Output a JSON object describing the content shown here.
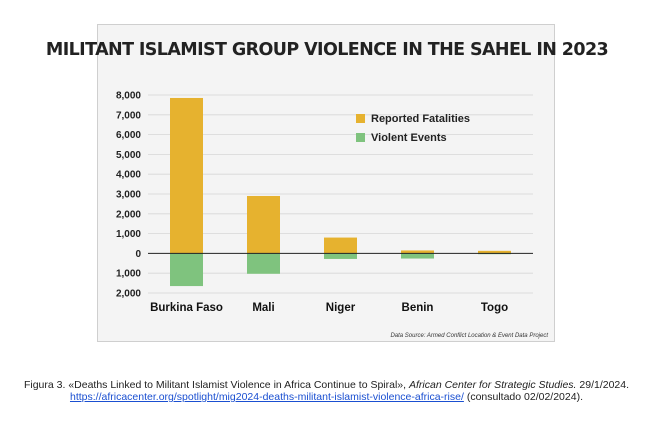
{
  "chart_data": {
    "type": "bar",
    "title": "MILITANT ISLAMIST GROUP VIOLENCE IN THE SAHEL IN 2023",
    "categories": [
      "Burkina Faso",
      "Mali",
      "Niger",
      "Benin",
      "Togo"
    ],
    "series": [
      {
        "name": "Reported Fatalities",
        "color": "#e6b22f",
        "values": [
          7850,
          2900,
          800,
          150,
          130
        ]
      },
      {
        "name": "Violent Events",
        "color": "#7fc37e",
        "values": [
          1650,
          1030,
          280,
          260,
          40
        ],
        "direction": "below-zero"
      }
    ],
    "ylim": [
      -2000,
      8000
    ],
    "yticks": [
      {
        "value": 8000,
        "label": "8,000"
      },
      {
        "value": 7000,
        "label": "7,000"
      },
      {
        "value": 6000,
        "label": "6,000"
      },
      {
        "value": 5000,
        "label": "5,000"
      },
      {
        "value": 4000,
        "label": "4,000"
      },
      {
        "value": 3000,
        "label": "3,000"
      },
      {
        "value": 2000,
        "label": "2,000"
      },
      {
        "value": 1000,
        "label": "1,000"
      },
      {
        "value": 0,
        "label": "0"
      },
      {
        "value": -1000,
        "label": "1,000"
      },
      {
        "value": -2000,
        "label": "2,000"
      }
    ],
    "grid": true,
    "legend_position": "top-right",
    "source": "Data Source: Armed Conflict Location & Event Data Project"
  },
  "caption": {
    "prefix": "Figura 3. «Deaths Linked to Militant Islamist Violence in Africa Continue to Spiral», ",
    "publisher": "African Center for Strategic Studies.",
    "date": " 29/1/2024. ",
    "url": "https://africacenter.org/spotlight/mig2024-deaths-militant-islamist-violence-africa-rise/",
    "suffix": " (consultado 02/02/2024)."
  }
}
